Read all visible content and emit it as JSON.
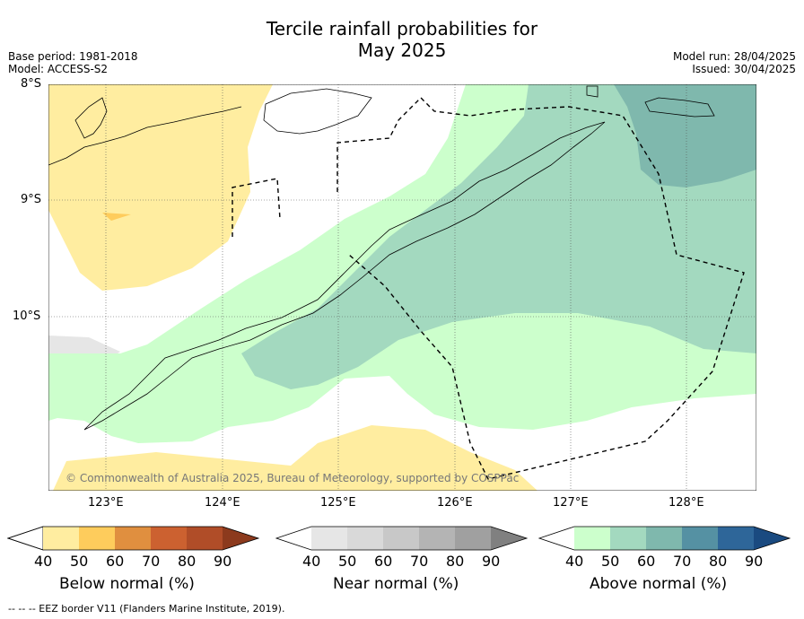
{
  "header": {
    "title_line1": "Tercile rainfall probabilities for",
    "title_line2": "May 2025",
    "base_period": "Base period: 1981-2018",
    "model": "Model: ACCESS-S2",
    "model_run": "Model run: 28/04/2025",
    "issued": "Issued: 30/04/2025"
  },
  "map": {
    "lat_labels": [
      "8°S",
      "9°S",
      "10°S"
    ],
    "lon_labels": [
      "123°E",
      "124°E",
      "125°E",
      "126°E",
      "127°E",
      "128°E"
    ],
    "copyright": "© Commonwealth of Australia 2025, Bureau of Meteorology, supported by COSPPac"
  },
  "colorbars": [
    {
      "title": "Below normal (%)",
      "ticks": [
        "40",
        "50",
        "60",
        "70",
        "80",
        "90"
      ],
      "colors": [
        "#ffffff",
        "#ffeda0",
        "#fecc5c",
        "#e08f3f",
        "#cc6130",
        "#b04d28",
        "#8c3a1d"
      ]
    },
    {
      "title": "Near normal (%)",
      "ticks": [
        "40",
        "50",
        "60",
        "70",
        "80",
        "90"
      ],
      "colors": [
        "#ffffff",
        "#e6e6e6",
        "#d9d9d9",
        "#c8c8c8",
        "#b4b4b4",
        "#a0a0a0",
        "#808080"
      ]
    },
    {
      "title": "Above normal (%)",
      "ticks": [
        "40",
        "50",
        "60",
        "70",
        "80",
        "90"
      ],
      "colors": [
        "#ffffff",
        "#ccffcc",
        "#a3d9bf",
        "#7fb8ad",
        "#5591a3",
        "#2e6699",
        "#1a4a80"
      ]
    }
  ],
  "footer": {
    "legend": "--  --  -- EEZ border V11 (Flanders Marine Institute, 2019)."
  }
}
